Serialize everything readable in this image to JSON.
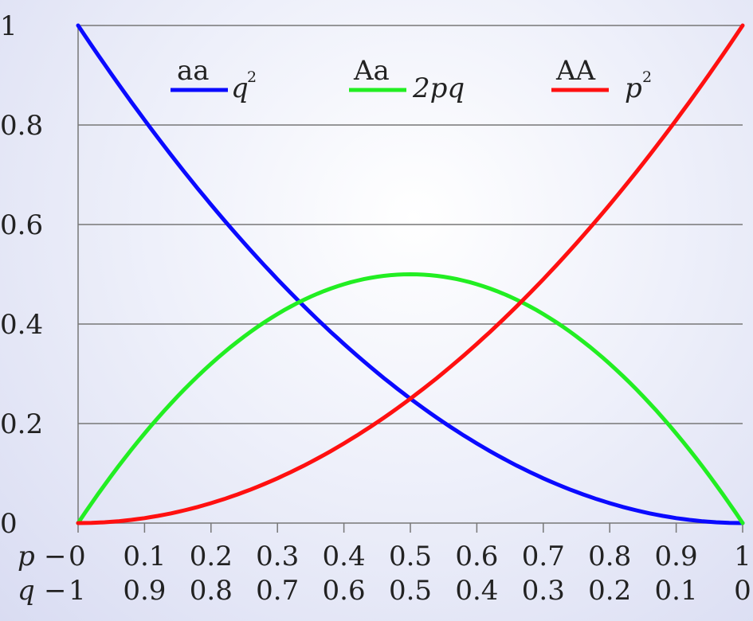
{
  "chart_data": {
    "type": "line",
    "x": [
      0,
      0.1,
      0.2,
      0.3,
      0.4,
      0.5,
      0.6,
      0.7,
      0.8,
      0.9,
      1
    ],
    "x_tick_labels_p": [
      "0",
      "0.1",
      "0.2",
      "0.3",
      "0.4",
      "0.5",
      "0.6",
      "0.7",
      "0.8",
      "0.9",
      "1"
    ],
    "x_tick_labels_q": [
      "1",
      "0.9",
      "0.8",
      "0.7",
      "0.6",
      "0.5",
      "0.4",
      "0.3",
      "0.2",
      "0.1",
      "0"
    ],
    "x_row_labels": {
      "p": "p",
      "q": "q",
      "sep": "−"
    },
    "y_tick_labels": [
      "0",
      "0.2",
      "0.4",
      "0.6",
      "0.8",
      "1"
    ],
    "y_ticks": [
      0,
      0.2,
      0.4,
      0.6,
      0.8,
      1
    ],
    "xlim": [
      0,
      1
    ],
    "ylim": [
      0,
      1
    ],
    "grid": "horizontal",
    "legend_placement": "top",
    "series": [
      {
        "name": "aa",
        "formula": "q²",
        "formula_base": "q",
        "formula_sup": "2",
        "color": "#0a0aff",
        "values": [
          1,
          0.81,
          0.64,
          0.49,
          0.36,
          0.25,
          0.16,
          0.09,
          0.04,
          0.01,
          0
        ]
      },
      {
        "name": "Aa",
        "formula": "2pq",
        "formula_base": "2pq",
        "formula_sup": "",
        "color": "#22ee22",
        "values": [
          0,
          0.18,
          0.32,
          0.42,
          0.48,
          0.5,
          0.48,
          0.42,
          0.32,
          0.18,
          0
        ]
      },
      {
        "name": "AA",
        "formula": "p²",
        "formula_base": "p",
        "formula_sup": "2",
        "color": "#ff1010",
        "values": [
          0,
          0.01,
          0.04,
          0.09,
          0.16,
          0.25,
          0.36,
          0.49,
          0.64,
          0.81,
          1
        ]
      }
    ]
  }
}
